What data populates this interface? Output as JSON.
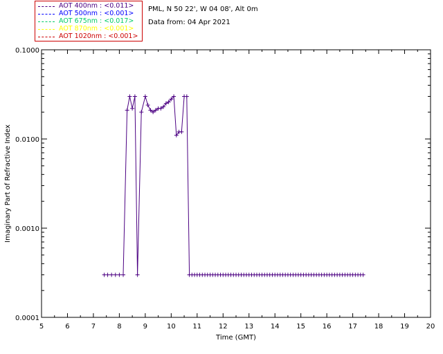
{
  "header": {
    "site_line": "PML, N 50 22', W 04 08', Alt 0m",
    "date_line": "Data from: 04 Apr 2021"
  },
  "legend": [
    {
      "label": "AOT  400nm : <0.011>",
      "color": "#4b0082"
    },
    {
      "label": "AOT  500nm : <0.001>",
      "color": "#0000ff"
    },
    {
      "label": "AOT  675nm : <0.017>",
      "color": "#00cc66"
    },
    {
      "label": "AOT  870nm : <0.001>",
      "color": "#ffff00"
    },
    {
      "label": "AOT 1020nm : <0.001>",
      "color": "#cc0000"
    }
  ],
  "chart_data": {
    "type": "line",
    "title": "",
    "xlabel": "Time (GMT)",
    "ylabel": "Imaginary Part of Refractive Index",
    "xlim": [
      5,
      20
    ],
    "ylim": [
      0.0001,
      0.1
    ],
    "yscale": "log",
    "xticks": [
      "5",
      "6",
      "7",
      "8",
      "9",
      "10",
      "11",
      "12",
      "13",
      "14",
      "15",
      "16",
      "17",
      "18",
      "19",
      "20"
    ],
    "yticks": [
      "0.0001",
      "0.0010",
      "0.0100",
      "0.1000"
    ],
    "series": [
      {
        "name": "AOT  400nm : <0.011>",
        "color": "#4b0082",
        "marker": "plus",
        "x": [
          7.42,
          7.55,
          7.7,
          7.85,
          8.0,
          8.15,
          8.3,
          8.4,
          8.5,
          8.6,
          8.7,
          8.85,
          9.0,
          9.1,
          9.2,
          9.3,
          9.4,
          9.5,
          9.6,
          9.7,
          9.8,
          9.9,
          10.0,
          10.1,
          10.2,
          10.3,
          10.4,
          10.5,
          10.6,
          10.7,
          10.8,
          10.9,
          11.0,
          11.1,
          11.2,
          11.3,
          11.4,
          11.5,
          11.6,
          11.7,
          11.8,
          11.9,
          12.0,
          12.1,
          12.2,
          12.3,
          12.4,
          12.5,
          12.6,
          12.7,
          12.8,
          12.9,
          13.0,
          13.1,
          13.2,
          13.3,
          13.4,
          13.5,
          13.6,
          13.7,
          13.8,
          13.9,
          14.0,
          14.1,
          14.2,
          14.3,
          14.4,
          14.5,
          14.6,
          14.7,
          14.8,
          14.9,
          15.0,
          15.1,
          15.2,
          15.3,
          15.4,
          15.5,
          15.6,
          15.7,
          15.8,
          15.9,
          16.0,
          16.1,
          16.2,
          16.3,
          16.4,
          16.5,
          16.6,
          16.7,
          16.8,
          16.9,
          17.0,
          17.1,
          17.2,
          17.3,
          17.4
        ],
        "y": [
          0.0003,
          0.0003,
          0.0003,
          0.0003,
          0.0003,
          0.0003,
          0.021,
          0.03,
          0.022,
          0.03,
          0.0003,
          0.02,
          0.03,
          0.024,
          0.021,
          0.02,
          0.021,
          0.022,
          0.022,
          0.023,
          0.025,
          0.026,
          0.028,
          0.03,
          0.011,
          0.012,
          0.012,
          0.03,
          0.03,
          0.0003,
          0.0003,
          0.0003,
          0.0003,
          0.0003,
          0.0003,
          0.0003,
          0.0003,
          0.0003,
          0.0003,
          0.0003,
          0.0003,
          0.0003,
          0.0003,
          0.0003,
          0.0003,
          0.0003,
          0.0003,
          0.0003,
          0.0003,
          0.0003,
          0.0003,
          0.0003,
          0.0003,
          0.0003,
          0.0003,
          0.0003,
          0.0003,
          0.0003,
          0.0003,
          0.0003,
          0.0003,
          0.0003,
          0.0003,
          0.0003,
          0.0003,
          0.0003,
          0.0003,
          0.0003,
          0.0003,
          0.0003,
          0.0003,
          0.0003,
          0.0003,
          0.0003,
          0.0003,
          0.0003,
          0.0003,
          0.0003,
          0.0003,
          0.0003,
          0.0003,
          0.0003,
          0.0003,
          0.0003,
          0.0003,
          0.0003,
          0.0003,
          0.0003,
          0.0003,
          0.0003,
          0.0003,
          0.0003,
          0.0003,
          0.0003,
          0.0003,
          0.0003,
          0.0003
        ]
      }
    ]
  }
}
